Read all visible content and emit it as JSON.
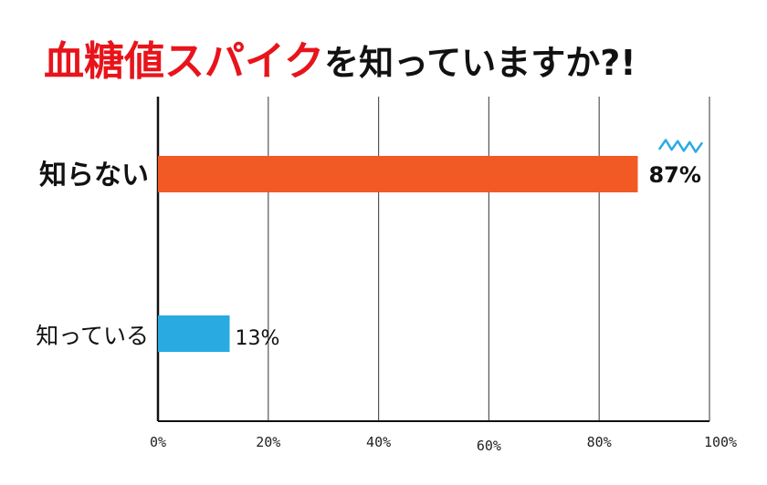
{
  "title": {
    "highlight": "血糖値スパイク",
    "rest": "を知っていますか?!",
    "highlight_color": "#e8141b",
    "rest_color": "#111111"
  },
  "chart_data": {
    "type": "bar",
    "orientation": "horizontal",
    "categories": [
      "知らない",
      "知っている"
    ],
    "values": [
      87,
      13
    ],
    "value_labels": [
      "87%",
      "13%"
    ],
    "colors": [
      "#f15a24",
      "#29abe2"
    ],
    "xlim": [
      0,
      100
    ],
    "xticks": [
      0,
      20,
      40,
      60,
      80,
      100
    ],
    "xtick_labels": [
      "0%",
      "20%",
      "40%",
      "60%",
      "80%",
      "100%"
    ],
    "grid": true,
    "emphasis_category": "知らない",
    "accent_color": "#29abe2"
  }
}
